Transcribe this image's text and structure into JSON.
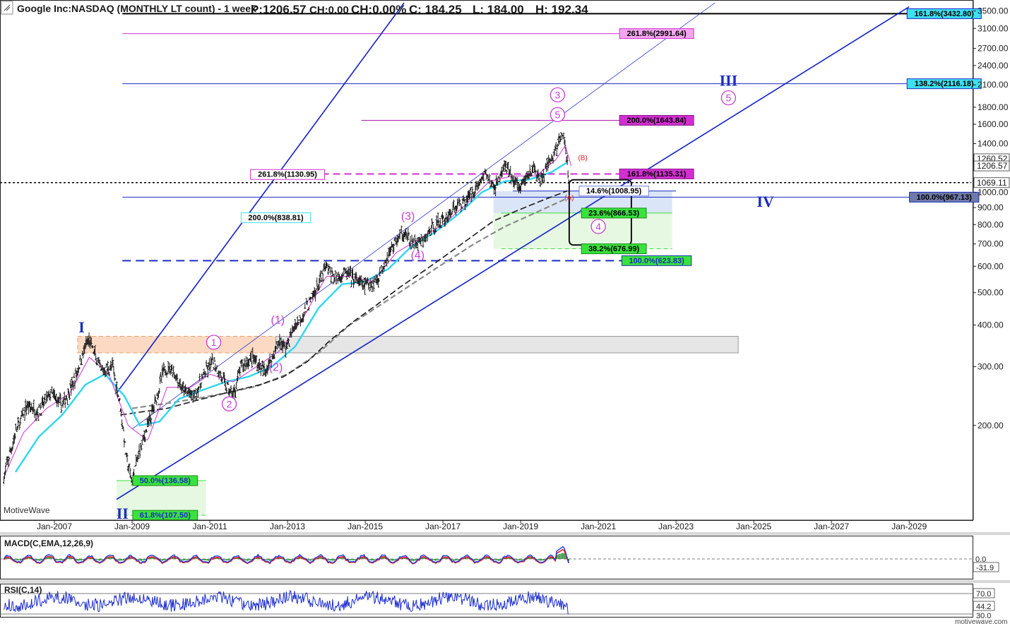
{
  "header": {
    "title": "Google Inc:NASDAQ (MONTHLY LT count) - 1 week",
    "p": "P:1206.57",
    "ch": "CH:0.00",
    "chpct": "CH:0.00%",
    "c": "C: 184.25",
    "l": "L: 184.00",
    "h": "H: 192.34"
  },
  "watermark": "MotiveWave",
  "footer": "motivewave.com",
  "colors": {
    "price_bar": "#1b1b1b",
    "ma_fast": "#d12fd1",
    "ma_mid": "#2ed6f2",
    "channel": "#1020c8",
    "wave_pink": "#c83cd2",
    "wave_blue": "#1c2dbf",
    "fib_green": "#39e23c",
    "fib_cyan": "#3fe0f0",
    "fib_magenta": "#d22fd2",
    "fib_pink": "#f07ee0",
    "macd_line": "#1f3fe0",
    "macd_signal": "#e81c1c",
    "macd_hist": "#1e8a2a",
    "rsi_line": "#1c2dd0"
  },
  "chart_data": {
    "type": "candlestick",
    "y_scale": "log",
    "ylim": [
      105,
      3700
    ],
    "xlim": [
      "2005-07",
      "2030-06"
    ],
    "y_ticks": [
      "3500.00",
      "3100.00",
      "2700.00",
      "2400.00",
      "2100.00",
      "1800.00",
      "1600.00",
      "1400.00",
      "1200.00",
      "1000.00",
      "900.00",
      "800.00",
      "700.00",
      "600.00",
      "500.00",
      "400.00",
      "300.00",
      "200.00"
    ],
    "y_tick_values": [
      3500,
      3100,
      2700,
      2400,
      2100,
      1800,
      1600,
      1400,
      1200,
      1000,
      900,
      800,
      700,
      600,
      500,
      400,
      300,
      200
    ],
    "x_ticks": [
      "Jan-2007",
      "Jan-2009",
      "Jan-2011",
      "Jan-2013",
      "Jan-2015",
      "Jan-2017",
      "Jan-2019",
      "Jan-2021",
      "Jan-2023",
      "Jan-2025",
      "Jan-2027",
      "Jan-2029"
    ],
    "x_tick_values": [
      2007.0,
      2009.0,
      2011.0,
      2013.0,
      2015.0,
      2017.0,
      2019.0,
      2021.0,
      2023.0,
      2025.0,
      2027.0,
      2029.0
    ],
    "price_path": [
      [
        2005.7,
        140
      ],
      [
        2006.0,
        190
      ],
      [
        2006.3,
        230
      ],
      [
        2006.6,
        220
      ],
      [
        2006.9,
        250
      ],
      [
        2007.2,
        230
      ],
      [
        2007.5,
        270
      ],
      [
        2007.8,
        345
      ],
      [
        2007.9,
        360
      ],
      [
        2008.2,
        290
      ],
      [
        2008.5,
        300
      ],
      [
        2008.7,
        230
      ],
      [
        2008.85,
        160
      ],
      [
        2009.0,
        135
      ],
      [
        2009.2,
        170
      ],
      [
        2009.5,
        215
      ],
      [
        2009.8,
        290
      ],
      [
        2010.0,
        300
      ],
      [
        2010.3,
        255
      ],
      [
        2010.6,
        245
      ],
      [
        2010.9,
        290
      ],
      [
        2011.1,
        310
      ],
      [
        2011.4,
        265
      ],
      [
        2011.6,
        245
      ],
      [
        2011.8,
        300
      ],
      [
        2012.1,
        320
      ],
      [
        2012.4,
        290
      ],
      [
        2012.6,
        320
      ],
      [
        2012.8,
        360
      ],
      [
        2012.95,
        340
      ],
      [
        2013.2,
        400
      ],
      [
        2013.5,
        450
      ],
      [
        2013.8,
        530
      ],
      [
        2014.0,
        600
      ],
      [
        2014.2,
        550
      ],
      [
        2014.5,
        575
      ],
      [
        2014.8,
        540
      ],
      [
        2015.0,
        525
      ],
      [
        2015.3,
        545
      ],
      [
        2015.5,
        620
      ],
      [
        2015.8,
        720
      ],
      [
        2016.0,
        760
      ],
      [
        2016.2,
        700
      ],
      [
        2016.5,
        715
      ],
      [
        2016.8,
        800
      ],
      [
        2017.0,
        820
      ],
      [
        2017.3,
        900
      ],
      [
        2017.6,
        950
      ],
      [
        2017.9,
        1050
      ],
      [
        2018.1,
        1150
      ],
      [
        2018.3,
        1020
      ],
      [
        2018.6,
        1200
      ],
      [
        2018.9,
        1050
      ],
      [
        2019.0,
        1030
      ],
      [
        2019.3,
        1190
      ],
      [
        2019.5,
        1080
      ],
      [
        2019.8,
        1260
      ],
      [
        2020.0,
        1430
      ],
      [
        2020.1,
        1500
      ],
      [
        2020.2,
        1200
      ],
      [
        2020.25,
        1070
      ]
    ],
    "ma_fast_path": [
      [
        2005.7,
        140
      ],
      [
        2006.2,
        190
      ],
      [
        2006.8,
        225
      ],
      [
        2007.4,
        250
      ],
      [
        2007.9,
        320
      ],
      [
        2008.4,
        285
      ],
      [
        2008.9,
        200
      ],
      [
        2009.4,
        180
      ],
      [
        2009.9,
        260
      ],
      [
        2010.5,
        260
      ],
      [
        2011.0,
        285
      ],
      [
        2011.6,
        270
      ],
      [
        2012.2,
        300
      ],
      [
        2012.8,
        335
      ],
      [
        2013.4,
        420
      ],
      [
        2014.0,
        560
      ],
      [
        2014.6,
        560
      ],
      [
        2015.2,
        540
      ],
      [
        2015.8,
        660
      ],
      [
        2016.4,
        725
      ],
      [
        2017.0,
        800
      ],
      [
        2017.6,
        920
      ],
      [
        2018.2,
        1080
      ],
      [
        2018.8,
        1120
      ],
      [
        2019.4,
        1120
      ],
      [
        2019.9,
        1250
      ],
      [
        2020.15,
        1380
      ],
      [
        2020.3,
        1200
      ]
    ],
    "ma_mid_path": [
      [
        2006.0,
        145
      ],
      [
        2006.6,
        185
      ],
      [
        2007.2,
        215
      ],
      [
        2007.8,
        265
      ],
      [
        2008.3,
        285
      ],
      [
        2008.8,
        245
      ],
      [
        2009.2,
        200
      ],
      [
        2009.7,
        205
      ],
      [
        2010.2,
        240
      ],
      [
        2010.8,
        255
      ],
      [
        2011.4,
        270
      ],
      [
        2012.0,
        280
      ],
      [
        2012.6,
        300
      ],
      [
        2013.2,
        345
      ],
      [
        2013.8,
        450
      ],
      [
        2014.4,
        530
      ],
      [
        2015.0,
        540
      ],
      [
        2015.6,
        590
      ],
      [
        2016.2,
        690
      ],
      [
        2016.8,
        760
      ],
      [
        2017.4,
        860
      ],
      [
        2018.0,
        1000
      ],
      [
        2018.6,
        1080
      ],
      [
        2019.2,
        1090
      ],
      [
        2019.8,
        1150
      ],
      [
        2020.2,
        1230
      ]
    ],
    "ma_long_path": [
      [
        2008.7,
        215
      ],
      [
        2009.3,
        220
      ],
      [
        2009.9,
        225
      ],
      [
        2010.5,
        235
      ],
      [
        2011.1,
        245
      ],
      [
        2011.7,
        255
      ],
      [
        2012.3,
        265
      ],
      [
        2012.9,
        280
      ],
      [
        2013.5,
        310
      ],
      [
        2014.1,
        360
      ],
      [
        2014.7,
        410
      ],
      [
        2015.3,
        460
      ],
      [
        2015.9,
        520
      ],
      [
        2016.5,
        580
      ],
      [
        2017.1,
        650
      ],
      [
        2017.7,
        730
      ],
      [
        2018.3,
        820
      ],
      [
        2018.9,
        880
      ],
      [
        2019.5,
        940
      ],
      [
        2020.2,
        1010
      ]
    ],
    "ma_long2_path": [
      [
        2009.0,
        225
      ],
      [
        2009.8,
        232
      ],
      [
        2010.6,
        240
      ],
      [
        2011.4,
        250
      ],
      [
        2012.2,
        262
      ],
      [
        2013.0,
        285
      ],
      [
        2013.8,
        330
      ],
      [
        2014.6,
        400
      ],
      [
        2015.4,
        460
      ],
      [
        2016.2,
        530
      ],
      [
        2017.0,
        610
      ],
      [
        2017.8,
        700
      ],
      [
        2018.6,
        790
      ],
      [
        2019.4,
        870
      ],
      [
        2020.2,
        960
      ]
    ],
    "channel_lines": [
      [
        [
          2008.6,
          250
        ],
        [
          2016.0,
          3700
        ]
      ],
      [
        [
          2008.6,
          120
        ],
        [
          2029.0,
          3600
        ]
      ],
      [
        [
          2009.0,
          195
        ],
        [
          2024.0,
          3700
        ]
      ]
    ],
    "fib_lines": [
      {
        "price": 3432.8,
        "label": "161.8%(3432.80)",
        "x1": 2008.75,
        "x2": 2030.6,
        "color": "#000000",
        "width": 2,
        "dash": ""
      },
      {
        "price": 2991.64,
        "label": "261.8%(2991.64)",
        "x1": 2008.75,
        "x2": 2023.3,
        "color": "#d22fd2",
        "width": 1,
        "dash": ""
      },
      {
        "price": 2116.18,
        "label": "138.2%(2116.18)",
        "x1": 2008.75,
        "x2": 2030.6,
        "color": "#1c2dbf",
        "width": 1,
        "dash": ""
      },
      {
        "price": 1643.84,
        "label": "200.0%(1643.84)",
        "x1": 2014.9,
        "x2": 2023.3,
        "color": "#b01cb0",
        "width": 1,
        "dash": ""
      },
      {
        "price": 1135.31,
        "label": "161.8%(1135.31)",
        "x1": 2013.3,
        "x2": 2023.3,
        "color": "#d22fd2",
        "width": 2,
        "dash": "10,6"
      },
      {
        "price": 1069.11,
        "label": "",
        "x1": 2005.6,
        "x2": 2030.6,
        "color": "#000000",
        "width": 1.5,
        "dash": "3,3"
      },
      {
        "price": 1008.95,
        "label": "14.6%(1008.95)",
        "x1": 2018.8,
        "x2": 2023.0,
        "color": "#1c2dbf",
        "width": 1,
        "dash": ""
      },
      {
        "price": 967.13,
        "label": "100.0%(967.13)",
        "x1": 2008.75,
        "x2": 2030.6,
        "color": "#1c2dbf",
        "width": 1,
        "dash": ""
      },
      {
        "price": 866.53,
        "label": "23.6%(866.53)",
        "x1": 2018.5,
        "x2": 2022.9,
        "color": "#39e23c",
        "width": 1,
        "dash": ""
      },
      {
        "price": 676.99,
        "label": "38.2%(676.99)",
        "x1": 2018.5,
        "x2": 2022.9,
        "color": "#39e23c",
        "width": 1,
        "dash": "6,4"
      },
      {
        "price": 623.83,
        "label": "100.0%(623.83)",
        "x1": 2008.75,
        "x2": 2023.3,
        "color": "#1c2dbf",
        "width": 2,
        "dash": "12,7"
      },
      {
        "price": 136.58,
        "label": "50.0%(136.58)",
        "x1": 2008.6,
        "x2": 2010.9,
        "color": "#39e23c",
        "width": 1,
        "dash": ""
      },
      {
        "price": 107.5,
        "label": "61.8%(107.50)",
        "x1": 2008.6,
        "x2": 2010.9,
        "color": "#39e23c",
        "width": 1,
        "dash": "6,4"
      }
    ],
    "fib_labels": [
      {
        "text": "161.8%(3432.80)",
        "x": 2029.9,
        "price": 3432.8,
        "bg": "#3fe0f0",
        "fg": "#000000",
        "border": "#1020c8"
      },
      {
        "text": "261.8%(2991.64)",
        "x": 2022.5,
        "price": 2991.64,
        "bg": "#f2a6ee",
        "fg": "#000000",
        "border": "#d22fd2"
      },
      {
        "text": "138.2%(2116.18)",
        "x": 2029.9,
        "price": 2116.18,
        "bg": "#3fe0f0",
        "fg": "#000000",
        "border": "#1c2dbf"
      },
      {
        "text": "200.0%(1643.84)",
        "x": 2022.5,
        "price": 1643.84,
        "bg": "#d22fd2",
        "fg": "#000000",
        "border": "#8a1a8a"
      },
      {
        "text": "161.8%(1135.31)",
        "x": 2022.5,
        "price": 1135.31,
        "bg": "#d22fd2",
        "fg": "#000000",
        "border": "#8a1a8a"
      },
      {
        "text": "261.8%(1130.95)",
        "x": 2013.0,
        "price": 1130.95,
        "bg": "#ffffff",
        "fg": "#000000",
        "border": "#d22fd2"
      },
      {
        "text": "14.6%(1008.95)",
        "x": 2021.4,
        "price": 1008.95,
        "bg": "#ffffff",
        "fg": "#000000",
        "border": "#7080e0"
      },
      {
        "text": "100.0%(967.13)",
        "x": 2029.9,
        "price": 967.13,
        "bg": "#6f7aa8",
        "fg": "#000000",
        "border": "#1c2dbf"
      },
      {
        "text": "23.6%(866.53)",
        "x": 2021.4,
        "price": 866.53,
        "bg": "#39e23c",
        "fg": "#000000",
        "border": "#1a8a1a"
      },
      {
        "text": "200.0%(838.81)",
        "x": 2012.7,
        "price": 838.81,
        "bg": "#ffffff",
        "fg": "#000000",
        "border": "#3fe0f0"
      },
      {
        "text": "38.2%(676.99)",
        "x": 2021.4,
        "price": 676.99,
        "bg": "#39e23c",
        "fg": "#000000",
        "border": "#1a8a1a"
      },
      {
        "text": "100.0%(623.83)",
        "x": 2022.5,
        "price": 623.83,
        "bg": "#39e23c",
        "fg": "#1c2dbf",
        "border": "#1c2dbf"
      },
      {
        "text": "50.0%(136.58)",
        "x": 2009.85,
        "price": 136.58,
        "bg": "#39e23c",
        "fg": "#1c2dbf",
        "border": "#1a8a1a"
      },
      {
        "text": "61.8%(107.50)",
        "x": 2009.85,
        "price": 107.5,
        "bg": "#39e23c",
        "fg": "#1c2dbf",
        "border": "#1a8a1a"
      }
    ],
    "zones": [
      {
        "x1": 2007.6,
        "x2": 2012.7,
        "p1": 330,
        "p2": 370,
        "fill": "#fbd9c2",
        "stroke": "#e8a070",
        "dash": "6,4"
      },
      {
        "x1": 2012.7,
        "x2": 2024.6,
        "p1": 330,
        "p2": 370,
        "fill": "#e6e6e6",
        "stroke": "#999999",
        "dash": ""
      },
      {
        "x1": 2018.3,
        "x2": 2022.9,
        "p1": 866.53,
        "p2": 1008.95,
        "fill": "#dbe5f8",
        "stroke": "none",
        "dash": ""
      },
      {
        "x1": 2018.3,
        "x2": 2022.9,
        "p1": 676.99,
        "p2": 866.53,
        "fill": "#e6f8e1",
        "stroke": "none",
        "dash": ""
      },
      {
        "x1": 2008.6,
        "x2": 2010.9,
        "p1": 107.5,
        "p2": 136.58,
        "fill": "#e6f8e1",
        "stroke": "none",
        "dash": ""
      }
    ],
    "target_box": {
      "x1": 2020.25,
      "x2": 2021.85,
      "p1": 695,
      "p2": 1090
    },
    "wave_labels": [
      {
        "text": "I",
        "x": 2007.7,
        "price": 395,
        "color": "#1c2dbf",
        "size": 22,
        "circled": false,
        "font": "serif"
      },
      {
        "text": "II",
        "x": 2008.75,
        "price": 109,
        "color": "#1c2dbf",
        "size": 22,
        "circled": false,
        "font": "serif"
      },
      {
        "text": "III",
        "x": 2024.35,
        "price": 2170,
        "color": "#1c2dbf",
        "size": 22,
        "circled": false,
        "font": "serif"
      },
      {
        "text": "IV",
        "x": 2025.3,
        "price": 940,
        "color": "#1c2dbf",
        "size": 22,
        "circled": false,
        "font": "serif"
      },
      {
        "text": "1",
        "x": 2011.1,
        "price": 355,
        "color": "#c83cd2",
        "size": 14,
        "circled": true,
        "font": "sans"
      },
      {
        "text": "2",
        "x": 2011.5,
        "price": 232,
        "color": "#c83cd2",
        "size": 14,
        "circled": true,
        "font": "sans"
      },
      {
        "text": "3",
        "x": 2019.95,
        "price": 1960,
        "color": "#c83cd2",
        "size": 14,
        "circled": true,
        "font": "sans"
      },
      {
        "text": "5",
        "x": 2019.95,
        "price": 1710,
        "color": "#c83cd2",
        "size": 14,
        "circled": true,
        "font": "sans"
      },
      {
        "text": "4",
        "x": 2021.0,
        "price": 790,
        "color": "#c83cd2",
        "size": 14,
        "circled": true,
        "font": "sans"
      },
      {
        "text": "5",
        "x": 2024.35,
        "price": 1920,
        "color": "#c83cd2",
        "size": 14,
        "circled": true,
        "font": "sans"
      },
      {
        "text": "(1)",
        "x": 2012.75,
        "price": 415,
        "color": "#c83cd2",
        "size": 16,
        "circled": false,
        "font": "sans"
      },
      {
        "text": "(2)",
        "x": 2012.7,
        "price": 300,
        "color": "#c83cd2",
        "size": 16,
        "circled": false,
        "font": "sans"
      },
      {
        "text": "(3)",
        "x": 2016.1,
        "price": 850,
        "color": "#c83cd2",
        "size": 16,
        "circled": false,
        "font": "sans"
      },
      {
        "text": "(4)",
        "x": 2016.35,
        "price": 650,
        "color": "#c83cd2",
        "size": 16,
        "circled": false,
        "font": "sans"
      },
      {
        "text": "(A)",
        "x": 2020.25,
        "price": 965,
        "color": "#e81c1c",
        "size": 10,
        "circled": false,
        "font": "sans"
      },
      {
        "text": "(B)",
        "x": 2020.6,
        "price": 1270,
        "color": "#e81c1c",
        "size": 10,
        "circled": false,
        "font": "sans"
      },
      {
        "text": "(C)",
        "x": 2020.95,
        "price": 855,
        "color": "#e87c1c",
        "size": 10,
        "circled": false,
        "font": "sans"
      }
    ],
    "right_badges": [
      {
        "text": "1260.52",
        "price": 1260.52,
        "bg": "#ffffff"
      },
      {
        "text": "1206.57",
        "price": 1200,
        "bg": "#ffffff"
      },
      {
        "text": "1069.11",
        "price": 1069.11,
        "bg": "#ffffff"
      }
    ]
  },
  "macd": {
    "label": "MACD(C,EMA,12,26,9)",
    "ticks": [
      "0.0"
    ],
    "current": "-31.9"
  },
  "rsi": {
    "label": "RSI(C,14)",
    "ticks": [
      "70.0",
      "30.0"
    ],
    "current": "44.2"
  }
}
